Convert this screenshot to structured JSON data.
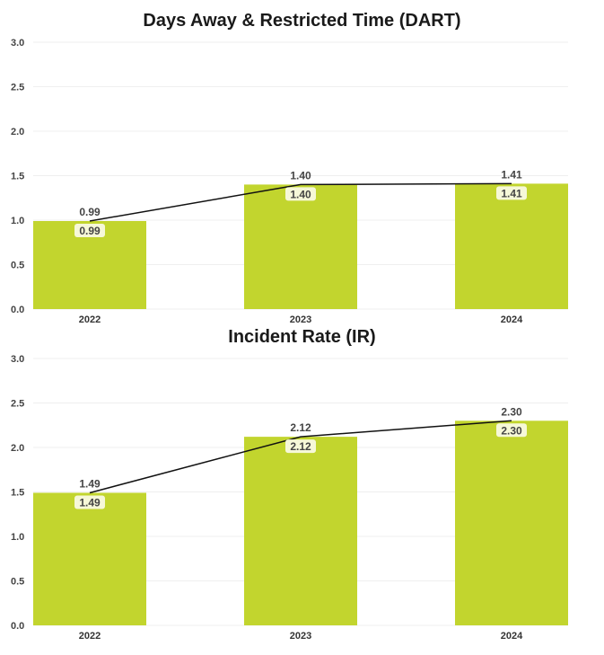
{
  "chart_data": [
    {
      "type": "bar",
      "title": "Days Away & Restricted Time (DART)",
      "categories": [
        "2022",
        "2023",
        "2024"
      ],
      "values": [
        0.99,
        1.4,
        1.41
      ],
      "labels": [
        "0.99",
        "1.40",
        "1.41"
      ],
      "ylim": [
        0,
        3.0
      ],
      "yticks": [
        "0.0",
        "0.5",
        "1.0",
        "1.5",
        "2.0",
        "2.5",
        "3.0"
      ],
      "overlay": "line",
      "grid": true,
      "bar_color": "#c2d52e",
      "line_color": "#111111"
    },
    {
      "type": "bar",
      "title": "Incident Rate (IR)",
      "categories": [
        "2022",
        "2023",
        "2024"
      ],
      "values": [
        1.49,
        2.12,
        2.3
      ],
      "labels": [
        "1.49",
        "2.12",
        "2.30"
      ],
      "ylim": [
        0,
        3.0
      ],
      "yticks": [
        "0.0",
        "0.5",
        "1.0",
        "1.5",
        "2.0",
        "2.5",
        "3.0"
      ],
      "overlay": "line",
      "grid": true,
      "bar_color": "#c2d52e",
      "line_color": "#111111"
    }
  ]
}
